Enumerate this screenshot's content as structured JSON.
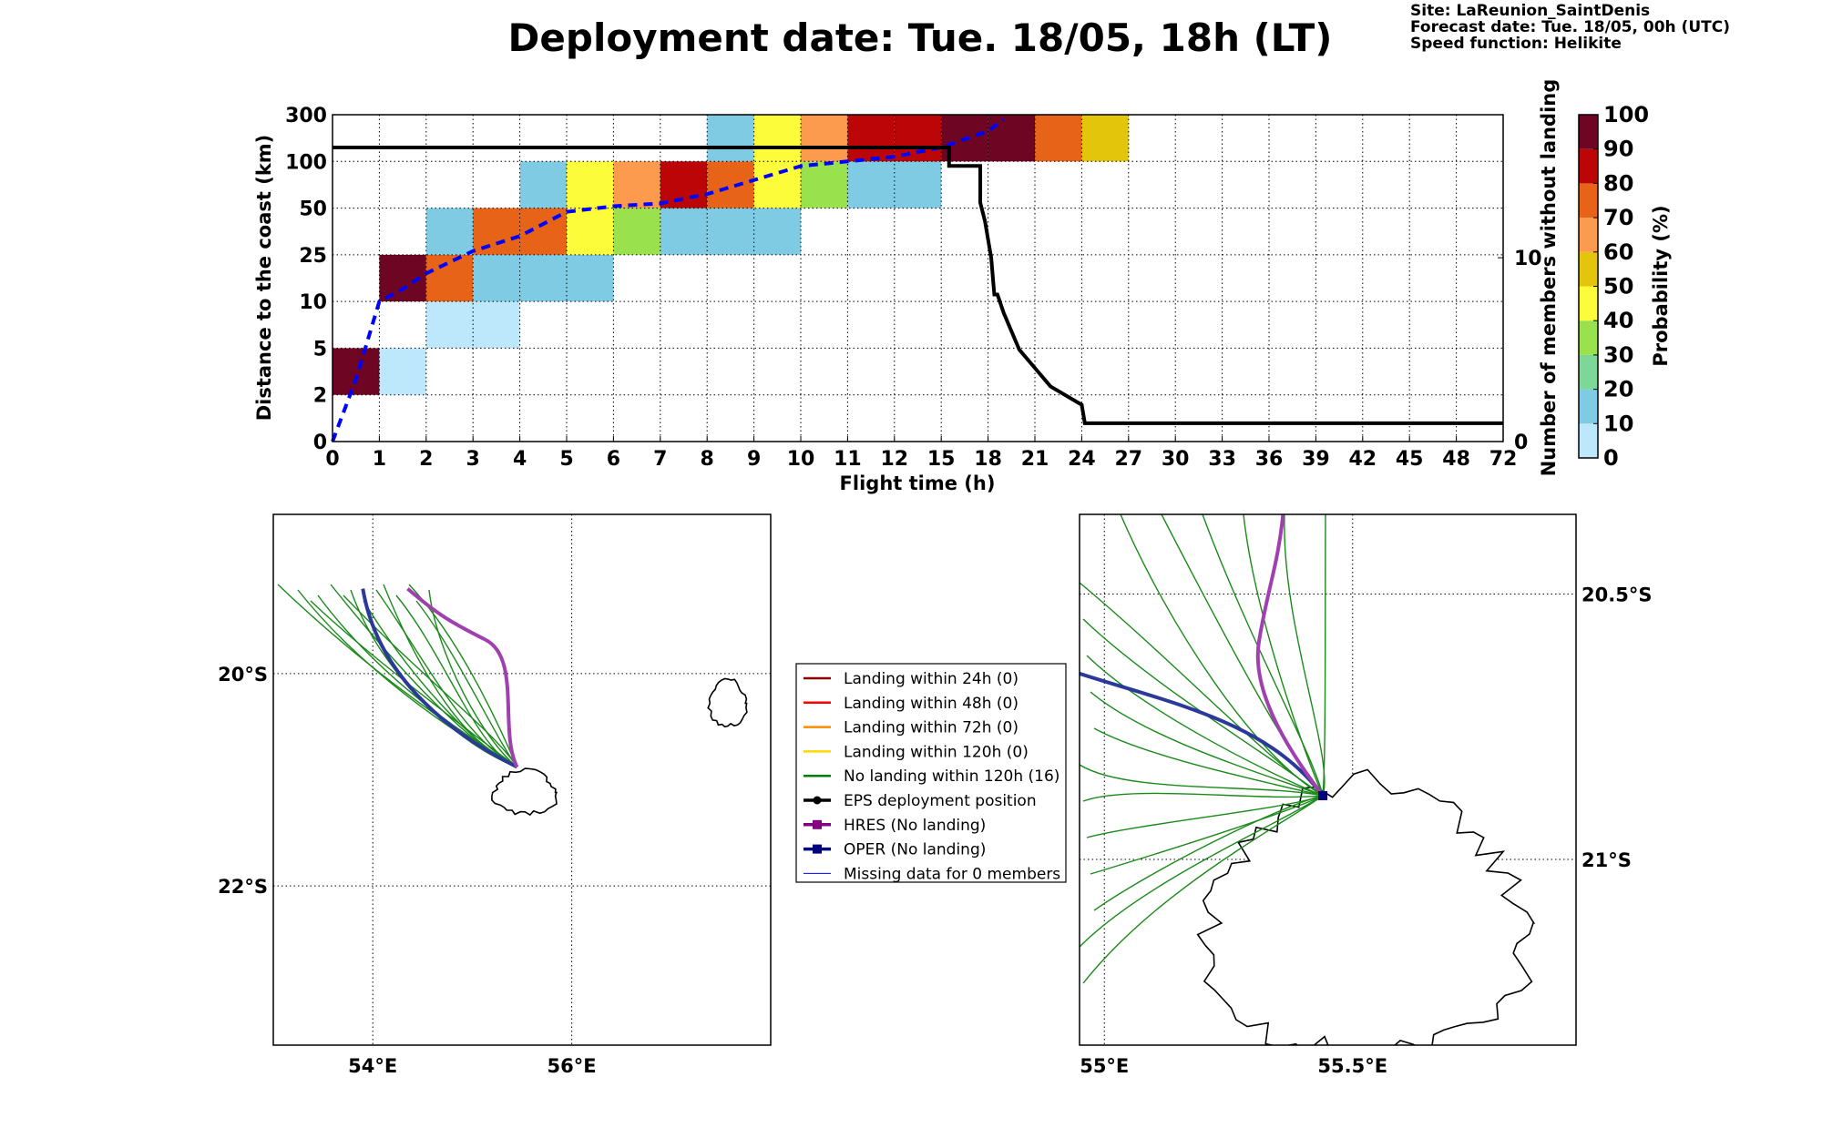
{
  "title": "Deployment date: Tue. 18/05, 18h (LT)",
  "info": {
    "site": "Site: LaReunion_SaintDenis",
    "forecast": "Forecast date: Tue. 18/05, 00h (UTC)",
    "speed": "Speed function: Helikite"
  },
  "colorbar": {
    "label": "Probability (%)",
    "ticks": [
      "0",
      "10",
      "20",
      "30",
      "40",
      "50",
      "60",
      "70",
      "80",
      "90",
      "100"
    ],
    "colors": [
      "#bde7fb",
      "#7fcbe4",
      "#7ed698",
      "#9ae14e",
      "#fdfc3a",
      "#e3c60b",
      "#fc9a4e",
      "#e66318",
      "#bb0506",
      "#6e0522"
    ]
  },
  "chart_data": [
    {
      "type": "heatmap",
      "xlabel": "Flight time (h)",
      "ylabel": "Distance to the coast (km)",
      "y2label": "Number of members without landing",
      "x_ticks": [
        "0",
        "1",
        "2",
        "3",
        "4",
        "5",
        "6",
        "7",
        "8",
        "9",
        "10",
        "11",
        "12",
        "15",
        "18",
        "21",
        "24",
        "27",
        "30",
        "33",
        "36",
        "39",
        "42",
        "45",
        "48",
        "72"
      ],
      "y_ticks": [
        "0",
        "2",
        "5",
        "10",
        "25",
        "50",
        "100",
        "300"
      ],
      "y2_ticks": [
        "0",
        "10"
      ],
      "cells": [
        {
          "x": "0-1",
          "y": "2-5",
          "p": 95
        },
        {
          "x": "1-2",
          "y": "2-5",
          "p": 5
        },
        {
          "x": "1-2",
          "y": "10-25",
          "p": 95
        },
        {
          "x": "2-3",
          "y": "5-10",
          "p": 5
        },
        {
          "x": "2-3",
          "y": "10-25",
          "p": 75
        },
        {
          "x": "2-3",
          "y": "25-50",
          "p": 15
        },
        {
          "x": "3-4",
          "y": "5-10",
          "p": 5
        },
        {
          "x": "3-4",
          "y": "10-25",
          "p": 15
        },
        {
          "x": "3-4",
          "y": "25-50",
          "p": 75
        },
        {
          "x": "4-5",
          "y": "10-25",
          "p": 15
        },
        {
          "x": "4-5",
          "y": "25-50",
          "p": 75
        },
        {
          "x": "4-5",
          "y": "50-100",
          "p": 15
        },
        {
          "x": "5-6",
          "y": "10-25",
          "p": 15
        },
        {
          "x": "5-6",
          "y": "25-50",
          "p": 45
        },
        {
          "x": "5-6",
          "y": "50-100",
          "p": 45
        },
        {
          "x": "6-7",
          "y": "25-50",
          "p": 35
        },
        {
          "x": "6-7",
          "y": "50-100",
          "p": 65
        },
        {
          "x": "7-8",
          "y": "25-50",
          "p": 15
        },
        {
          "x": "7-8",
          "y": "50-100",
          "p": 85
        },
        {
          "x": "8-9",
          "y": "25-50",
          "p": 15
        },
        {
          "x": "8-9",
          "y": "50-100",
          "p": 75
        },
        {
          "x": "8-9",
          "y": "100-300",
          "p": 15
        },
        {
          "x": "9-10",
          "y": "25-50",
          "p": 15
        },
        {
          "x": "9-10",
          "y": "50-100",
          "p": 45
        },
        {
          "x": "9-10",
          "y": "100-300",
          "p": 45
        },
        {
          "x": "10-11",
          "y": "50-100",
          "p": 35
        },
        {
          "x": "10-11",
          "y": "100-300",
          "p": 65
        },
        {
          "x": "11-12",
          "y": "50-100",
          "p": 15
        },
        {
          "x": "11-12",
          "y": "100-300",
          "p": 85
        },
        {
          "x": "12-15",
          "y": "50-100",
          "p": 15
        },
        {
          "x": "12-15",
          "y": "100-300",
          "p": 85
        },
        {
          "x": "15-18",
          "y": "100-300",
          "p": 95
        },
        {
          "x": "18-21",
          "y": "100-300",
          "p": 95
        },
        {
          "x": "21-24",
          "y": "100-300",
          "p": 75
        },
        {
          "x": "24-27",
          "y": "100-300",
          "p": 55
        }
      ],
      "median_distance_line": {
        "color": "#0000ff",
        "x": [
          0,
          0.5,
          1,
          1.5,
          2,
          3,
          4,
          5,
          6,
          7,
          8,
          9,
          10,
          11,
          12,
          15,
          18,
          19
        ],
        "y": [
          0,
          3,
          10,
          14,
          19,
          27,
          35,
          48,
          52,
          55,
          65,
          80,
          95,
          100,
          120,
          160,
          230,
          280
        ]
      },
      "members_without_landing": {
        "color": "#000000",
        "x": [
          0,
          15.5,
          15.5,
          17.5,
          17.5,
          17.8,
          18,
          18.2,
          18.4,
          18.6,
          19,
          19.5,
          20,
          21,
          22,
          24,
          24.2,
          24.4,
          72
        ],
        "y": [
          16,
          16,
          15,
          15,
          13,
          12,
          11,
          10,
          8,
          8,
          7,
          6,
          5,
          4,
          3,
          2,
          1,
          1,
          1
        ]
      }
    }
  ],
  "legend": {
    "items": [
      {
        "label": "Landing within 24h (0)",
        "color": "#8b0000",
        "style": "line"
      },
      {
        "label": "Landing within 48h (0)",
        "color": "#ff0000",
        "style": "line"
      },
      {
        "label": "Landing within 72h (0)",
        "color": "#ff8c00",
        "style": "line"
      },
      {
        "label": "Landing within 120h (0)",
        "color": "#ffd700",
        "style": "line"
      },
      {
        "label": "No landing within 120h (16)",
        "color": "#008000",
        "style": "line"
      },
      {
        "label": "EPS deployment position",
        "color": "#000000",
        "style": "dot"
      },
      {
        "label": "HRES (No landing)",
        "color": "#800080",
        "style": "square"
      },
      {
        "label": "OPER (No landing)",
        "color": "#00007f",
        "style": "square"
      },
      {
        "label": "Missing data for 0 members",
        "color": "#0000ff",
        "style": "thin"
      }
    ]
  },
  "maps": {
    "left": {
      "lon_ticks": [
        "54°E",
        "56°E"
      ],
      "lat_ticks": [
        "20°S",
        "22°S"
      ],
      "lon_range": [
        53,
        58
      ],
      "lat_range": [
        -23.5,
        -18.5
      ]
    },
    "right": {
      "lon_ticks": [
        "55°E",
        "55.5°E"
      ],
      "lat_ticks": [
        "20.5°S",
        "21°S"
      ],
      "lon_range": [
        54.95,
        55.95
      ],
      "lat_range": [
        -21.35,
        -20.35
      ]
    }
  }
}
